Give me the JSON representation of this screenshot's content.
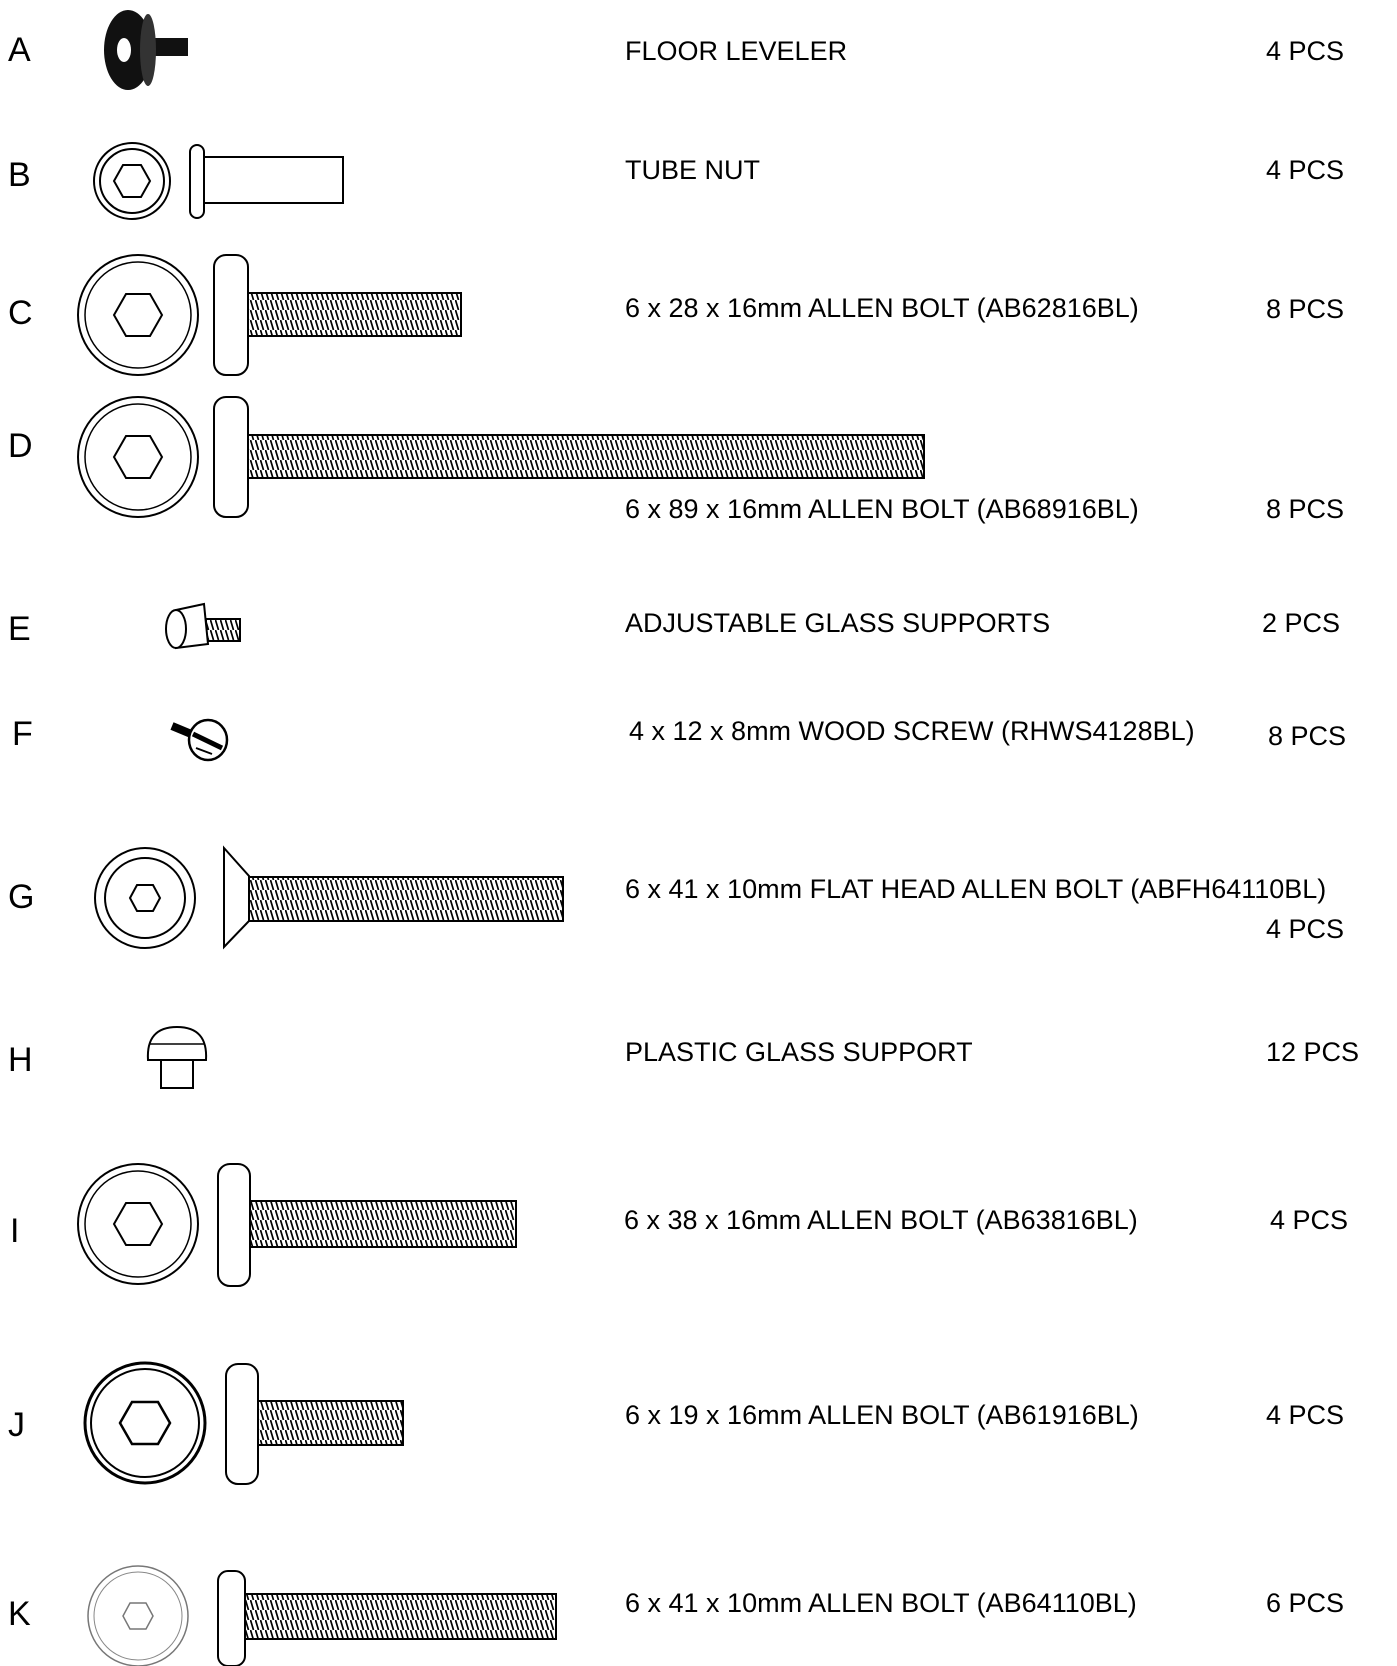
{
  "parts": [
    {
      "letter": "A",
      "description": "FLOOR LEVELER",
      "quantity": "4 PCS",
      "icon": "floor-leveler-icon"
    },
    {
      "letter": "B",
      "description": "TUBE NUT",
      "quantity": "4 PCS",
      "icon": "tube-nut-icon"
    },
    {
      "letter": "C",
      "description": "6 x 28 x 16mm ALLEN BOLT (AB62816BL)",
      "quantity": "8 PCS",
      "icon": "allen-bolt-icon"
    },
    {
      "letter": "D",
      "description": "6 x 89 x 16mm ALLEN BOLT (AB68916BL)",
      "quantity": "8 PCS",
      "icon": "allen-bolt-icon"
    },
    {
      "letter": "E",
      "description": "ADJUSTABLE GLASS SUPPORTS",
      "quantity": "2 PCS",
      "icon": "glass-support-icon"
    },
    {
      "letter": "F",
      "description": "4 x 12 x 8mm WOOD SCREW (RHWS4128BL)",
      "quantity": "8 PCS",
      "icon": "wood-screw-icon"
    },
    {
      "letter": "G",
      "description": "6 x 41 x 10mm FLAT HEAD ALLEN BOLT (ABFH64110BL)",
      "quantity": "4 PCS",
      "icon": "flat-head-bolt-icon"
    },
    {
      "letter": "H",
      "description": "PLASTIC GLASS SUPPORT",
      "quantity": "12 PCS",
      "icon": "plastic-support-icon"
    },
    {
      "letter": "I",
      "description": "6 x 38 x 16mm ALLEN BOLT (AB63816BL)",
      "quantity": "4 PCS",
      "icon": "allen-bolt-icon"
    },
    {
      "letter": "J",
      "description": "6 x 19 x 16mm ALLEN BOLT (AB61916BL)",
      "quantity": "4 PCS",
      "icon": "allen-bolt-icon"
    },
    {
      "letter": "K",
      "description": "6 x 41 x 10mm ALLEN BOLT (AB64110BL)",
      "quantity": "6 PCS",
      "icon": "allen-bolt-icon"
    }
  ]
}
